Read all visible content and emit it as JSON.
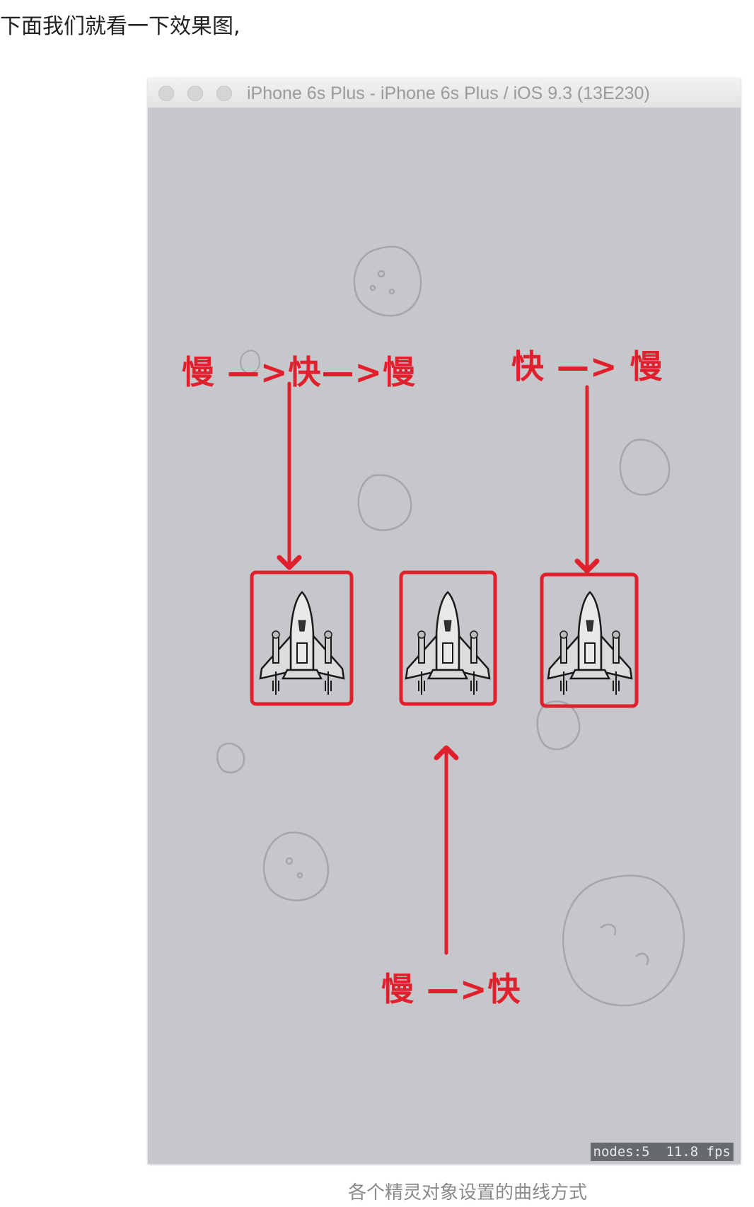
{
  "article": {
    "intro_text": "下面我们就看一下效果图,",
    "caption": "各个精灵对象设置的曲线方式"
  },
  "simulator": {
    "window_title": "iPhone 6s Plus - iPhone 6s Plus / iOS 9.3 (13E230)",
    "stats_overlay": "nodes:5  11.8 fps"
  },
  "annotations": {
    "left_label": "慢 —>快—>慢",
    "right_label": "快 —> 慢",
    "bottom_label": "慢 —>快"
  },
  "colors": {
    "annotation_red": "#e0202c",
    "scene_background": "#c6c7cb"
  },
  "icons": {
    "spaceship": "spaceship-icon",
    "asteroid": "asteroid-icon"
  }
}
